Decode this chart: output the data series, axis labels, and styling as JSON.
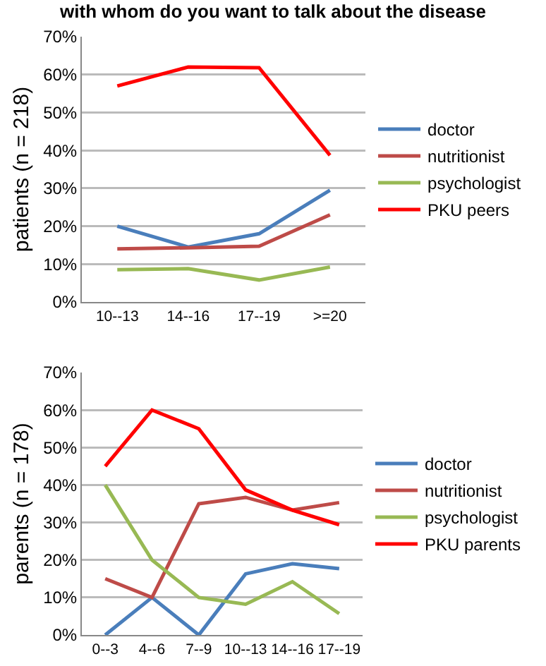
{
  "chart_data": [
    {
      "type": "line",
      "title": "with whom do you want to talk about the disease",
      "ylabel": "patients (n = 218)",
      "categories": [
        "10--13",
        "14--16",
        "17--19",
        ">=20"
      ],
      "series": [
        {
          "name": "doctor",
          "color": "#4a7ebb",
          "values": [
            20,
            14.5,
            18,
            29.5
          ]
        },
        {
          "name": "nutritionist",
          "color": "#be4b48",
          "values": [
            14,
            14.3,
            14.7,
            23
          ]
        },
        {
          "name": "psychologist",
          "color": "#98b954",
          "values": [
            8.5,
            8.8,
            5.8,
            9.2
          ]
        },
        {
          "name": "PKU peers",
          "color": "#ff0000",
          "values": [
            57,
            62,
            61.8,
            38.7
          ]
        }
      ],
      "ylim": [
        0,
        70
      ],
      "yticks": [
        {
          "value": 0,
          "label": "0%"
        },
        {
          "value": 10,
          "label": "10%"
        },
        {
          "value": 20,
          "label": "20%"
        },
        {
          "value": 30,
          "label": "30%"
        },
        {
          "value": 40,
          "label": "40%"
        },
        {
          "value": 50,
          "label": "50%"
        },
        {
          "value": 60,
          "label": "60%"
        },
        {
          "value": 70,
          "label": "70%"
        }
      ],
      "grid": "y",
      "legend": "right",
      "marker": "none",
      "line_style": "solid"
    },
    {
      "type": "line",
      "ylabel": "parents (n = 178)",
      "categories": [
        "0--3",
        "4--6",
        "7--9",
        "10--13",
        "14--16",
        "17--19"
      ],
      "series": [
        {
          "name": "doctor",
          "color": "#4a7ebb",
          "values": [
            0,
            10,
            0,
            16.3,
            19,
            17.7
          ]
        },
        {
          "name": "nutritionist",
          "color": "#be4b48",
          "values": [
            15,
            10,
            35,
            36.7,
            33.3,
            35.3
          ]
        },
        {
          "name": "psychologist",
          "color": "#98b954",
          "values": [
            40,
            20,
            10,
            8.2,
            14.2,
            5.7
          ]
        },
        {
          "name": "PKU parents",
          "color": "#ff0000",
          "values": [
            45,
            60,
            55,
            38.7,
            33.3,
            29.4
          ]
        }
      ],
      "ylim": [
        0,
        70
      ],
      "yticks": [
        {
          "value": 0,
          "label": "0%"
        },
        {
          "value": 10,
          "label": "10%"
        },
        {
          "value": 20,
          "label": "20%"
        },
        {
          "value": 30,
          "label": "30%"
        },
        {
          "value": 40,
          "label": "40%"
        },
        {
          "value": 50,
          "label": "50%"
        },
        {
          "value": 60,
          "label": "60%"
        },
        {
          "value": 70,
          "label": "70%"
        }
      ],
      "grid": "y",
      "legend": "right",
      "marker": "none",
      "line_style": "solid"
    }
  ]
}
